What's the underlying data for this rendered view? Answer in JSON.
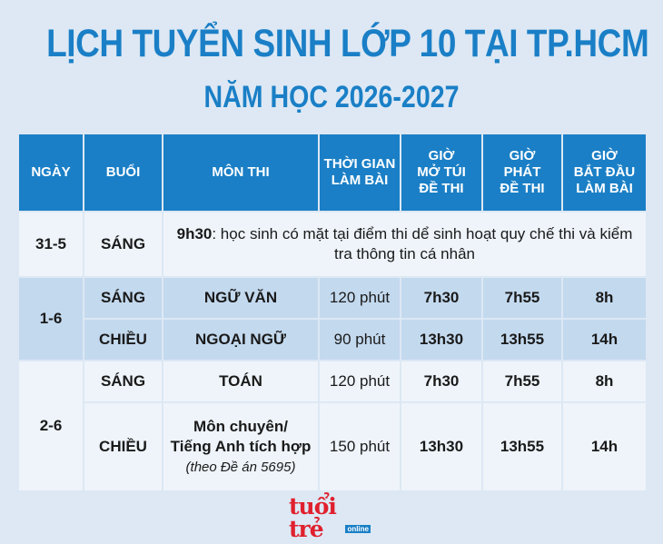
{
  "title": "LỊCH TUYỂN SINH LỚP 10 TẠI TP.HCM",
  "subtitle": "NĂM HỌC 2026-2027",
  "headers": {
    "day": "NGÀY",
    "session": "BUỔI",
    "subject": "MÔN THI",
    "duration_1": "THỜI GIAN",
    "duration_2": "LÀM BÀI",
    "open_1": "GIỜ",
    "open_2": "MỞ TÚI",
    "open_3": "ĐỀ THI",
    "distribute_1": "GIỜ",
    "distribute_2": "PHÁT",
    "distribute_3": "ĐỀ THI",
    "start_1": "GIỜ",
    "start_2": "BẮT ĐẦU",
    "start_3": "LÀM BÀI"
  },
  "rows": {
    "d1": {
      "day": "31-5",
      "session": "SÁNG",
      "note_time": "9h30",
      "note_text": ": học sinh có mặt tại điểm thi dể sinh hoạt quy chế thi và kiểm tra thông tin cá nhân"
    },
    "d2": {
      "day": "1-6",
      "morning": {
        "session": "SÁNG",
        "subject": "NGỮ VĂN",
        "duration": "120 phút",
        "open": "7h30",
        "distribute": "7h55",
        "start": "8h"
      },
      "afternoon": {
        "session": "CHIỀU",
        "subject": "NGOẠI NGỮ",
        "duration": "90 phút",
        "open": "13h30",
        "distribute": "13h55",
        "start": "14h"
      }
    },
    "d3": {
      "day": "2-6",
      "morning": {
        "session": "SÁNG",
        "subject": "TOÁN",
        "duration": "120 phút",
        "open": "7h30",
        "distribute": "7h55",
        "start": "8h"
      },
      "afternoon": {
        "session": "CHIỀU",
        "subject_1": "Môn chuyên/",
        "subject_2": "Tiếng Anh tích hợp",
        "subject_note": "(theo Đề án 5695)",
        "duration": "150 phút",
        "open": "13h30",
        "distribute": "13h55",
        "start": "14h"
      }
    }
  },
  "logo": {
    "main": "tuổi trẻ",
    "sub": "online"
  },
  "colors": {
    "accent": "#1a7fc6",
    "row_light": "#eef4fa",
    "row_dark": "#c3d9ee",
    "background": "#dde8f4",
    "logo_red": "#e0202e"
  }
}
